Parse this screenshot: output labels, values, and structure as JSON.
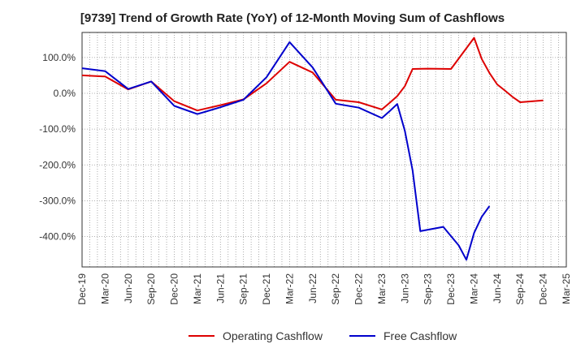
{
  "chart_data": {
    "type": "line",
    "title": "[9739]  Trend of Growth Rate (YoY) of 12-Month Moving Sum of Cashflows",
    "xlabel": "",
    "ylabel": "",
    "ylim": [
      -485,
      170
    ],
    "yticks": [
      100,
      0,
      -100,
      -200,
      -300,
      -400
    ],
    "ytick_labels": [
      "100.0%",
      "0.0%",
      "-100.0%",
      "-200.0%",
      "-300.0%",
      "-400.0%"
    ],
    "x_tick_labels": [
      "Dec-19",
      "Mar-20",
      "Jun-20",
      "Sep-20",
      "Dec-20",
      "Mar-21",
      "Jun-21",
      "Sep-21",
      "Dec-21",
      "Mar-22",
      "Jun-22",
      "Sep-22",
      "Dec-22",
      "Mar-23",
      "Jun-23",
      "Sep-23",
      "Dec-23",
      "Mar-24",
      "Jun-24",
      "Sep-24",
      "Dec-24",
      "Mar-25"
    ],
    "x_months": [
      "Dec-19",
      "Jan-20",
      "Feb-20",
      "Mar-20",
      "Apr-20",
      "May-20",
      "Jun-20",
      "Jul-20",
      "Aug-20",
      "Sep-20",
      "Oct-20",
      "Nov-20",
      "Dec-20",
      "Jan-21",
      "Feb-21",
      "Mar-21",
      "Apr-21",
      "May-21",
      "Jun-21",
      "Jul-21",
      "Aug-21",
      "Sep-21",
      "Oct-21",
      "Nov-21",
      "Dec-21",
      "Jan-22",
      "Feb-22",
      "Mar-22",
      "Apr-22",
      "May-22",
      "Jun-22",
      "Jul-22",
      "Aug-22",
      "Sep-22",
      "Oct-22",
      "Nov-22",
      "Dec-22",
      "Jan-23",
      "Feb-23",
      "Mar-23",
      "Apr-23",
      "May-23",
      "Jun-23",
      "Jul-23",
      "Aug-23",
      "Sep-23",
      "Oct-23",
      "Nov-23",
      "Dec-23",
      "Jan-24",
      "Feb-24",
      "Mar-24",
      "Apr-24",
      "May-24",
      "Jun-24",
      "Jul-24",
      "Aug-24",
      "Sep-24",
      "Oct-24",
      "Nov-24",
      "Dec-24",
      "Jan-25",
      "Feb-25",
      "Mar-25"
    ],
    "grid": true,
    "legend_position": "bottom",
    "series": [
      {
        "name": "Operating Cashflow",
        "color": "#dd0000",
        "values": [
          50,
          null,
          null,
          47,
          null,
          null,
          11,
          null,
          null,
          33,
          null,
          null,
          -22,
          null,
          null,
          -48,
          null,
          null,
          -33,
          null,
          null,
          -17,
          null,
          null,
          28,
          null,
          null,
          88,
          null,
          null,
          58,
          null,
          null,
          -18,
          null,
          null,
          -25,
          null,
          null,
          -45,
          -27,
          -8,
          20,
          68,
          null,
          69,
          null,
          null,
          68,
          null,
          null,
          155,
          96,
          57,
          25,
          8,
          -10,
          -25,
          null,
          null,
          -20,
          null,
          null,
          null
        ]
      },
      {
        "name": "Free Cashflow",
        "color": "#0000cc",
        "values": [
          70,
          null,
          null,
          62,
          null,
          null,
          12,
          null,
          null,
          33,
          null,
          null,
          -35,
          null,
          null,
          -58,
          null,
          null,
          -39,
          null,
          null,
          -18,
          null,
          null,
          45,
          null,
          null,
          143,
          null,
          null,
          72,
          null,
          null,
          -29,
          null,
          null,
          -40,
          null,
          null,
          -69,
          -50,
          -30,
          -105,
          -215,
          -385,
          null,
          null,
          -373,
          null,
          -425,
          -465,
          -390,
          -345,
          -315,
          null,
          null,
          null,
          null,
          null,
          null,
          null,
          null,
          null,
          null
        ]
      }
    ]
  }
}
